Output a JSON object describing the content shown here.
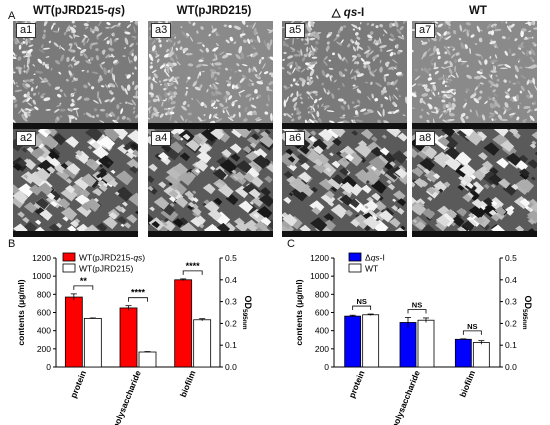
{
  "panel_A": {
    "letter": "A",
    "columns": [
      "WT(pJRD215-qs)",
      "WT(pJRD215)",
      "△ qs-I",
      "WT"
    ],
    "tiles_top": [
      "a1",
      "a3",
      "a5",
      "a7"
    ],
    "tiles_bottom": [
      "a2",
      "a4",
      "a6",
      "a8"
    ]
  },
  "panel_B": {
    "letter": "B"
  },
  "panel_C": {
    "letter": "C"
  },
  "colors": {
    "red": "#ff0000",
    "blue": "#0000ff",
    "white": "#ffffff"
  },
  "chart_data": [
    {
      "type": "bar",
      "categories": [
        "protein",
        "polysaccharide",
        "biofilm"
      ],
      "ylabel": "contents (μg/ml)",
      "y2label": "OD",
      "y2label_sub": "595nm",
      "ylim": [
        0,
        1200
      ],
      "y2lim": [
        0,
        0.5
      ],
      "yticks": [
        "0",
        "200",
        "400",
        "600",
        "800",
        "1000",
        "1200"
      ],
      "y2ticks": [
        "0.0",
        "0.1",
        "0.2",
        "0.3",
        "0.4",
        "0.5"
      ],
      "legend_position": "top-left",
      "series": [
        {
          "name": "WT(pJRD215-qs)",
          "name_prefix": "WT(pJRD215-",
          "name_italic": "qs",
          "name_suffix": ")",
          "color": "#ff0000",
          "values": [
            770,
            650,
            960
          ],
          "errors": [
            35,
            25,
            10
          ]
        },
        {
          "name": "WT(pJRD215)",
          "color": "#ffffff",
          "values": [
            535,
            165,
            520
          ],
          "errors": [
            5,
            5,
            12
          ]
        }
      ],
      "significance": [
        "**",
        "****",
        "****"
      ]
    },
    {
      "type": "bar",
      "categories": [
        "protein",
        "polysaccharide",
        "biofilm"
      ],
      "ylabel": "contents (μg/ml)",
      "y2label": "OD",
      "y2label_sub": "595nm",
      "ylim": [
        0,
        1200
      ],
      "y2lim": [
        0,
        0.5
      ],
      "yticks": [
        "0",
        "200",
        "400",
        "600",
        "800",
        "1000",
        "1200"
      ],
      "y2ticks": [
        "0.0",
        "0.1",
        "0.2",
        "0.3",
        "0.4",
        "0.5"
      ],
      "legend_position": "top-left",
      "series": [
        {
          "name": "Δqs-I",
          "name_prefix": "Δ",
          "name_italic": "qs",
          "name_suffix": "-I",
          "color": "#0000ff",
          "values": [
            560,
            490,
            305
          ],
          "errors": [
            10,
            55,
            5
          ]
        },
        {
          "name": "WT",
          "color": "#ffffff",
          "values": [
            575,
            515,
            270
          ],
          "errors": [
            8,
            25,
            20
          ]
        }
      ],
      "significance": [
        "NS",
        "NS",
        "NS"
      ]
    }
  ]
}
